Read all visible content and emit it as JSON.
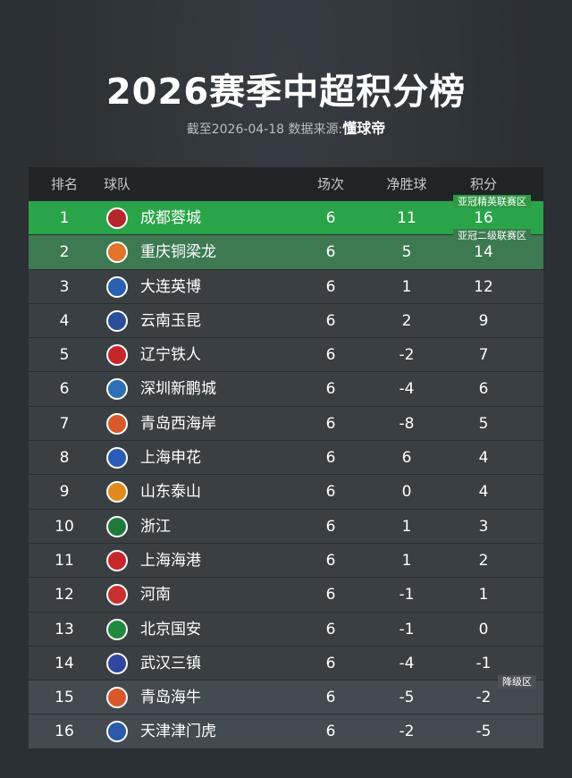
{
  "header": {
    "title": "2026赛季中超积分榜",
    "subtitle": "截至2026-04-18 数据来源:",
    "source": "懂球帝"
  },
  "table": {
    "columns": [
      "排名",
      "球队",
      "场次",
      "净胜球",
      "积分"
    ],
    "rows": [
      [
        1,
        "成都蓉城",
        6,
        11,
        16
      ],
      [
        2,
        "重庆铜梁龙",
        6,
        5,
        14
      ],
      [
        3,
        "大连英博",
        6,
        1,
        12
      ],
      [
        4,
        "云南玉昆",
        6,
        2,
        9
      ],
      [
        5,
        "辽宁铁人",
        6,
        -2,
        7
      ],
      [
        6,
        "深圳新鹏城",
        6,
        -4,
        6
      ],
      [
        7,
        "青岛西海岸",
        6,
        -8,
        5
      ],
      [
        8,
        "上海申花",
        6,
        6,
        4
      ],
      [
        9,
        "山东泰山",
        6,
        0,
        4
      ],
      [
        10,
        "浙江",
        6,
        1,
        3
      ],
      [
        11,
        "上海海港",
        6,
        1,
        2
      ],
      [
        12,
        "河南",
        6,
        -1,
        1
      ],
      [
        13,
        "北京国安",
        6,
        -1,
        0
      ],
      [
        14,
        "武汉三镇",
        6,
        -4,
        -1
      ],
      [
        15,
        "青岛海牛",
        6,
        -5,
        -2
      ],
      [
        16,
        "天津津门虎",
        6,
        -2,
        -5
      ]
    ]
  },
  "zones": [
    "亚冠精英联赛区",
    "亚冠二级联赛区",
    "降级区"
  ]
}
